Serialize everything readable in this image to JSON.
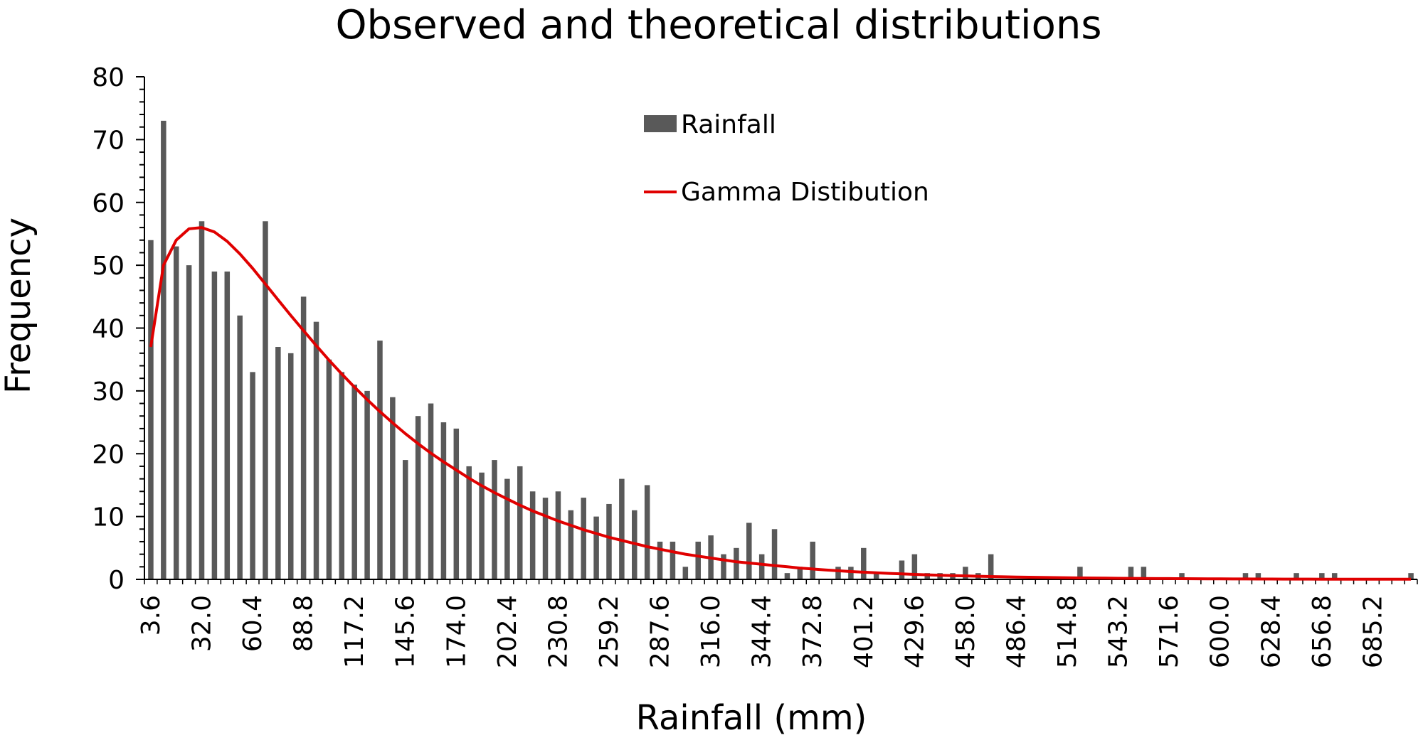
{
  "chart_data": {
    "type": "bar",
    "title": "Observed and theoretical distributions",
    "xlabel": "Rainfall (mm)",
    "ylabel": "Frequency",
    "ylim": [
      0,
      80
    ],
    "yticks": [
      0,
      10,
      20,
      30,
      40,
      50,
      60,
      70,
      80
    ],
    "x_start": 3.6,
    "bin_width": 7.1,
    "x_tick_labels": [
      "3.6",
      "32.0",
      "60.4",
      "88.8",
      "117.2",
      "145.6",
      "174.0",
      "202.4",
      "230.8",
      "259.2",
      "287.6",
      "316.0",
      "344.4",
      "372.8",
      "401.2",
      "429.6",
      "458.0",
      "486.4",
      "514.8",
      "543.2",
      "571.6",
      "600.0",
      "628.4",
      "656.8",
      "685.2"
    ],
    "legend": {
      "position": "top-center",
      "entries": [
        "Rainfall",
        "Gamma Distibution"
      ]
    },
    "colors": {
      "bars": "#595959",
      "line": "#e00000",
      "axis": "#000000"
    },
    "series": [
      {
        "name": "Rainfall",
        "kind": "bar",
        "values": [
          54,
          73,
          53,
          50,
          57,
          49,
          49,
          42,
          33,
          57,
          37,
          36,
          45,
          41,
          35,
          33,
          31,
          30,
          38,
          29,
          19,
          26,
          28,
          25,
          24,
          18,
          17,
          19,
          16,
          18,
          14,
          13,
          14,
          11,
          13,
          10,
          12,
          16,
          11,
          15,
          6,
          6,
          2,
          6,
          7,
          4,
          5,
          9,
          4,
          8,
          1,
          2,
          6,
          0,
          2,
          2,
          5,
          1,
          0,
          3,
          4,
          1,
          1,
          1,
          2,
          1,
          4,
          0,
          0,
          0,
          0,
          0,
          0,
          2,
          0,
          0,
          0,
          2,
          2,
          0,
          0,
          1,
          0,
          0,
          0,
          0,
          1,
          1,
          0,
          0,
          1,
          0,
          1,
          1,
          0,
          0,
          0,
          0,
          0,
          1
        ]
      },
      {
        "name": "Gamma Distibution",
        "kind": "line",
        "values": [
          37,
          50,
          54,
          55.8,
          56,
          55.3,
          53.8,
          51.8,
          49.5,
          47,
          44.5,
          42,
          39.6,
          37.2,
          34.9,
          32.7,
          30.6,
          28.6,
          26.7,
          24.9,
          23.2,
          21.6,
          20.1,
          18.7,
          17.4,
          16.1,
          14.9,
          13.8,
          12.8,
          11.8,
          10.9,
          10.1,
          9.3,
          8.6,
          7.9,
          7.3,
          6.7,
          6.2,
          5.7,
          5.2,
          4.8,
          4.4,
          4,
          3.7,
          3.4,
          3.1,
          2.8,
          2.6,
          2.4,
          2.2,
          2,
          1.8,
          1.65,
          1.5,
          1.37,
          1.25,
          1.14,
          1.04,
          0.95,
          0.87,
          0.79,
          0.72,
          0.66,
          0.6,
          0.55,
          0.5,
          0.45,
          0.41,
          0.37,
          0.34,
          0.31,
          0.28,
          0.25,
          0.23,
          0.21,
          0.19,
          0.17,
          0.16,
          0.14,
          0.13,
          0.12,
          0.11,
          0.1,
          0.09,
          0.08,
          0.07,
          0.065,
          0.06,
          0.055,
          0.05,
          0.045,
          0.04,
          0.037,
          0.034,
          0.031,
          0.028,
          0.025,
          0.023,
          0.021,
          0.019
        ]
      }
    ]
  }
}
